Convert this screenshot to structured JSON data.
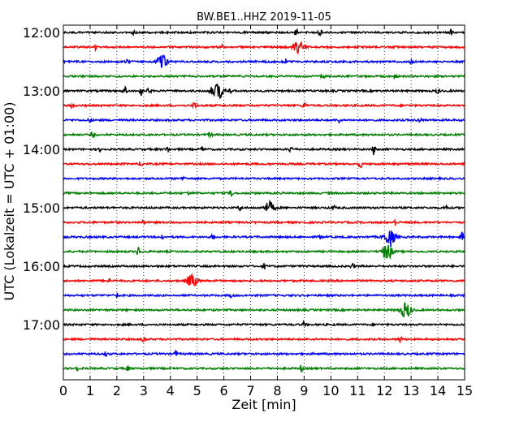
{
  "chart_data": {
    "type": "line",
    "title": "BW.BE1..HHZ 2019-11-05",
    "xlabel": "Zeit  [min]",
    "ylabel": "UTC (Lokalzeit = UTC + 01:00)",
    "xlim": [
      0,
      15
    ],
    "x_ticks": [
      "0",
      "1",
      "2",
      "3",
      "4",
      "5",
      "6",
      "7",
      "8",
      "9",
      "10",
      "11",
      "12",
      "13",
      "14",
      "15"
    ],
    "y_tick_labels": [
      "12:00",
      "13:00",
      "14:00",
      "15:00",
      "16:00",
      "17:00"
    ],
    "grid": "vertical dotted",
    "trace_colors": [
      "#000000",
      "#ff0000",
      "#0000ff",
      "#008000"
    ],
    "traces": [
      {
        "start": "12:00",
        "color": "#000000"
      },
      {
        "start": "12:15",
        "color": "#ff0000"
      },
      {
        "start": "12:30",
        "color": "#0000ff"
      },
      {
        "start": "12:45",
        "color": "#008000"
      },
      {
        "start": "13:00",
        "color": "#000000"
      },
      {
        "start": "13:15",
        "color": "#ff0000"
      },
      {
        "start": "13:30",
        "color": "#0000ff"
      },
      {
        "start": "13:45",
        "color": "#008000"
      },
      {
        "start": "14:00",
        "color": "#000000"
      },
      {
        "start": "14:15",
        "color": "#ff0000"
      },
      {
        "start": "14:30",
        "color": "#0000ff"
      },
      {
        "start": "14:45",
        "color": "#008000"
      },
      {
        "start": "15:00",
        "color": "#000000"
      },
      {
        "start": "15:15",
        "color": "#ff0000"
      },
      {
        "start": "15:30",
        "color": "#0000ff"
      },
      {
        "start": "15:45",
        "color": "#008000"
      },
      {
        "start": "16:00",
        "color": "#000000"
      },
      {
        "start": "16:15",
        "color": "#ff0000"
      },
      {
        "start": "16:30",
        "color": "#0000ff"
      },
      {
        "start": "16:45",
        "color": "#008000"
      },
      {
        "start": "17:00",
        "color": "#000000"
      },
      {
        "start": "17:15",
        "color": "#ff0000"
      },
      {
        "start": "17:30",
        "color": "#0000ff"
      },
      {
        "start": "17:45",
        "color": "#008000"
      }
    ]
  }
}
